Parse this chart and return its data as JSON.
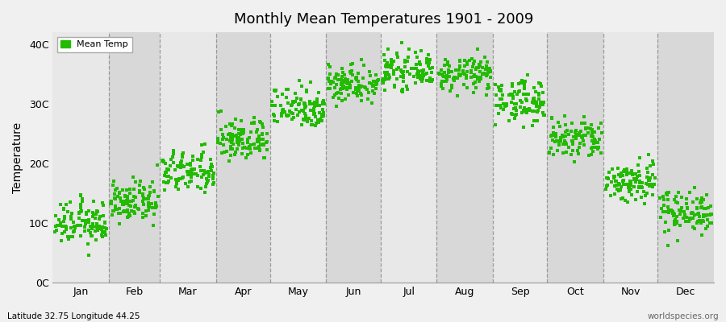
{
  "title": "Monthly Mean Temperatures 1901 - 2009",
  "ylabel": "Temperature",
  "bottom_left_text": "Latitude 32.75 Longitude 44.25",
  "bottom_right_text": "worldspecies.org",
  "legend_label": "Mean Temp",
  "dot_color": "#22bb00",
  "background_color": "#f0f0f0",
  "band_color_light": "#e8e8e8",
  "band_color_dark": "#d8d8d8",
  "months": [
    "Jan",
    "Feb",
    "Mar",
    "Apr",
    "May",
    "Jun",
    "Jul",
    "Aug",
    "Sep",
    "Oct",
    "Nov",
    "Dec"
  ],
  "yticks": [
    0,
    10,
    20,
    30,
    40
  ],
  "ylabels": [
    "0C",
    "10C",
    "20C",
    "30C",
    "40C"
  ],
  "ylim": [
    0,
    42
  ],
  "num_years": 109,
  "monthly_means": [
    10.0,
    13.5,
    18.5,
    24.0,
    29.5,
    33.5,
    35.5,
    35.0,
    30.5,
    24.0,
    17.0,
    12.0
  ],
  "monthly_stds": [
    1.8,
    1.6,
    1.8,
    1.8,
    1.8,
    1.6,
    1.4,
    1.4,
    1.8,
    1.8,
    1.8,
    1.8
  ],
  "month_days": [
    31,
    28,
    31,
    30,
    31,
    30,
    31,
    31,
    30,
    31,
    30,
    31
  ],
  "dashed_line_color": "#888888"
}
